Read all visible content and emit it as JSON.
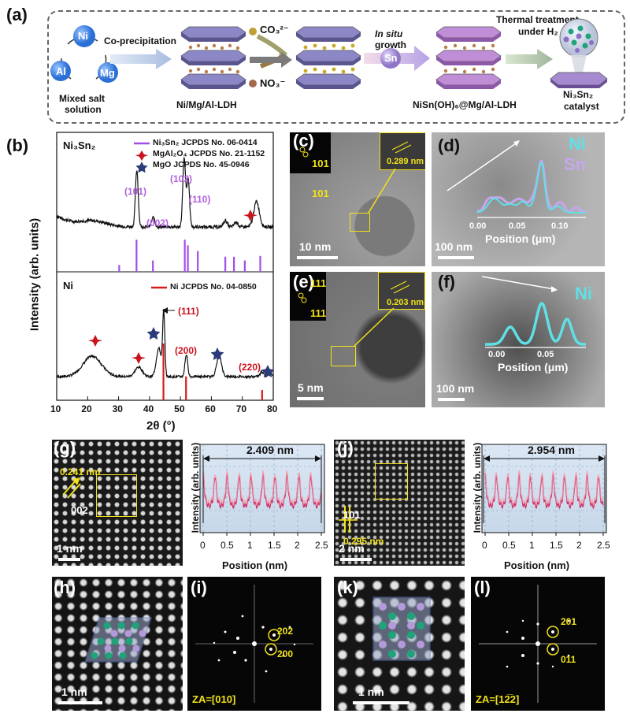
{
  "panel_labels": {
    "a": "(a)",
    "b": "(b)",
    "c": "(c)",
    "d": "(d)",
    "e": "(e)",
    "f": "(f)",
    "g": "(g)",
    "h": "(h)",
    "i": "(i)",
    "j": "(j)",
    "k": "(k)",
    "l": "(l)"
  },
  "scheme": {
    "salt": {
      "ni": "Ni",
      "al": "Al",
      "mg": "Mg",
      "caption_1": "Mixed salt",
      "caption_2": "solution"
    },
    "coprecip": "Co-precipitation",
    "ldh1": "Ni/Mg/Al-LDH",
    "ion_co3": "CO₃²⁻",
    "ion_no3": "NO₃⁻",
    "insitu_1": "In situ",
    "insitu_2": "growth",
    "sn": "Sn",
    "ldh2": "NiSn(OH)₆@Mg/Al-LDH",
    "thermal_1": "Thermal treatment",
    "thermal_2": "under H₂",
    "cat_1": "Ni₃Sn₂",
    "cat_2": "catalyst"
  },
  "xrd": {
    "top_label": "Ni₃Sn₂",
    "bottom_label": "Ni",
    "legend_top": [
      {
        "sym": "line",
        "text": "Ni₃Sn₂ JCPDS No. 06-0414",
        "color": "#a24fe6"
      },
      {
        "sym": "star4",
        "text": "MgAl₂O₄ JCPDS No. 21-1152",
        "color": "#c8141e"
      },
      {
        "sym": "star5",
        "text": "MgO JCPDS No. 45-0946",
        "color": "#2b3a78"
      }
    ],
    "legend_bottom": {
      "text": "Ni JCPDS No. 04-0850",
      "color": "#d61c1c"
    },
    "peak_labels_top": [
      {
        "x": 36,
        "text": "(101)"
      },
      {
        "x": 41.5,
        "text": "(002)"
      },
      {
        "x": 51.2,
        "text": "(102)"
      },
      {
        "x": 56,
        "text": "(110)"
      }
    ],
    "peak_labels_bottom": [
      {
        "text": "(111)"
      },
      {
        "text": "(200)"
      },
      {
        "text": "(220)"
      }
    ],
    "ylabel": "Intensity (arb. units)",
    "xlabel": "2θ (°)",
    "xticks": [
      "10",
      "20",
      "30",
      "40",
      "50",
      "60",
      "70",
      "80"
    ],
    "ref_top_x": [
      30.2,
      35.8,
      41.1,
      51.4,
      52.4,
      55.6,
      64.5,
      67.3,
      70.8,
      75.8
    ],
    "ref_top_h": [
      0.18,
      0.85,
      0.3,
      0.85,
      0.7,
      0.55,
      0.4,
      0.4,
      0.3,
      0.42
    ],
    "ref_bottom_x": [
      44.5,
      51.8,
      76.4
    ],
    "ref_bottom_h": [
      1.0,
      0.42,
      0.18
    ],
    "colors": {
      "ni3sn2": "#a24fe6",
      "mgal2o4": "#c8141e",
      "mgo": "#2b3a78",
      "ni": "#d61c1c"
    }
  },
  "tem": {
    "c": {
      "fft_top": "101",
      "fft_bottom": "101",
      "d": "0.289 nm",
      "scale": "10 nm"
    },
    "d": {
      "ni": "Ni",
      "sn": "Sn",
      "ticks": [
        "0.00",
        "0.05",
        "0.10"
      ],
      "xlabel": "Position (μm)",
      "scale": "100 nm"
    },
    "e": {
      "fft_top": "111",
      "fft_bottom": "111",
      "d": "0.203 nm",
      "scale": "5 nm"
    },
    "f": {
      "ni": "Ni",
      "ticks": [
        "0.00",
        "0.05"
      ],
      "xlabel": "Position (μm)",
      "scale": "100 nm"
    }
  },
  "stem": {
    "g": {
      "d": "0.241 nm",
      "plane": "002",
      "scale": "1 nm"
    },
    "g_profile": {
      "width": "2.409 nm",
      "ylabel": "Intensity (arb. units)",
      "xlabel": "Position (nm)",
      "xticks": [
        "0",
        "0.5",
        "1",
        "1.5",
        "2",
        "2.5"
      ]
    },
    "j": {
      "plane": "101",
      "d": "0.295 nm",
      "scale": "2 nm"
    },
    "j_profile": {
      "width": "2.954 nm",
      "ylabel": "Intensity (arb. units)",
      "xlabel": "Position (nm)",
      "xticks": [
        "0",
        "0.5",
        "1",
        "1.5",
        "2",
        "2.5"
      ]
    },
    "h": {
      "scale": "1 nm"
    },
    "i": {
      "s1": "202",
      "s2": "200",
      "za": "ZA=[010]"
    },
    "k": {
      "scale": "1 nm"
    },
    "l": {
      "s1": "201",
      "s2": "011",
      "za": "ZA=[12̅2]"
    }
  }
}
